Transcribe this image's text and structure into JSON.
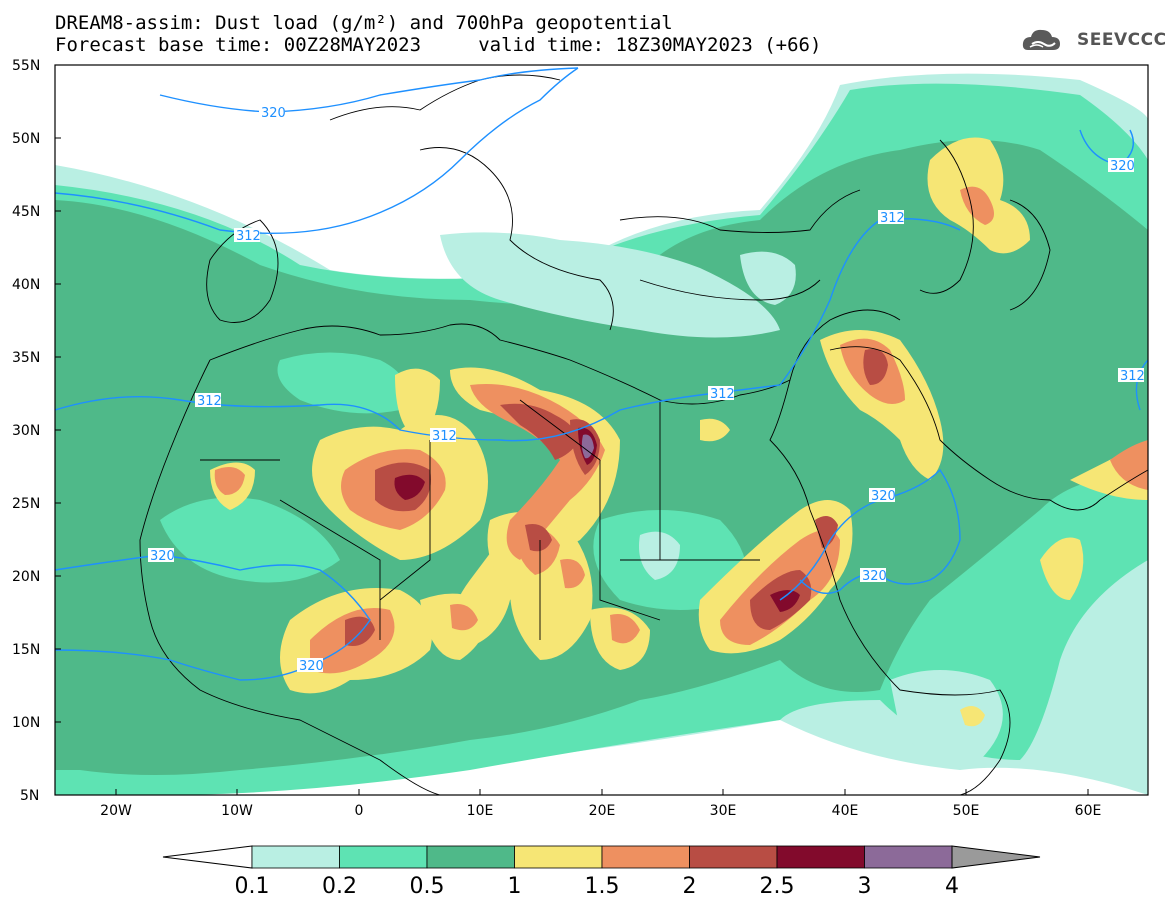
{
  "header": {
    "title_line1": "DREAM8-assim: Dust load (g/m²) and 700hPa geopotential",
    "title_line2": "Forecast base time: 00Z28MAY2023     valid time: 18Z30MAY2023 (+66)",
    "logo_text": "SEEVCCC"
  },
  "map": {
    "lat_labels": [
      "55N",
      "50N",
      "45N",
      "40N",
      "35N",
      "30N",
      "25N",
      "20N",
      "15N",
      "10N",
      "5N"
    ],
    "lon_labels": [
      "20W",
      "10W",
      "0",
      "10E",
      "20E",
      "30E",
      "40E",
      "50E",
      "60E"
    ],
    "contour_labels": [
      "320",
      "312",
      "312",
      "312",
      "312",
      "312",
      "320",
      "320",
      "320",
      "320",
      "312",
      "320"
    ]
  },
  "colorbar": {
    "labels": [
      "0.1",
      "0.2",
      "0.5",
      "1",
      "1.5",
      "2",
      "2.5",
      "3",
      "4"
    ],
    "colors": [
      "#b9efe3",
      "#5ee3b3",
      "#4fb989",
      "#f6e675",
      "#ee9060",
      "#b84d44",
      "#820a2c",
      "#8c6a99"
    ],
    "under_color": "#ffffff",
    "over_color": "#9a9a9a"
  },
  "chart_data": {
    "type": "heatmap",
    "title": "DREAM8-assim: Dust load (g/m²) and 700hPa geopotential",
    "levels": [
      0.1,
      0.2,
      0.5,
      1,
      1.5,
      2,
      2.5,
      3,
      4
    ],
    "xlim": [
      -25,
      65
    ],
    "ylim": [
      5,
      55
    ],
    "x_ticks": [
      "20W",
      "10W",
      "0",
      "10E",
      "20E",
      "30E",
      "40E",
      "50E",
      "60E"
    ],
    "y_ticks": [
      "55N",
      "50N",
      "45N",
      "40N",
      "35N",
      "30N",
      "25N",
      "20N",
      "15N",
      "10N",
      "5N"
    ],
    "geopotential_contours": [
      312,
      320
    ]
  }
}
